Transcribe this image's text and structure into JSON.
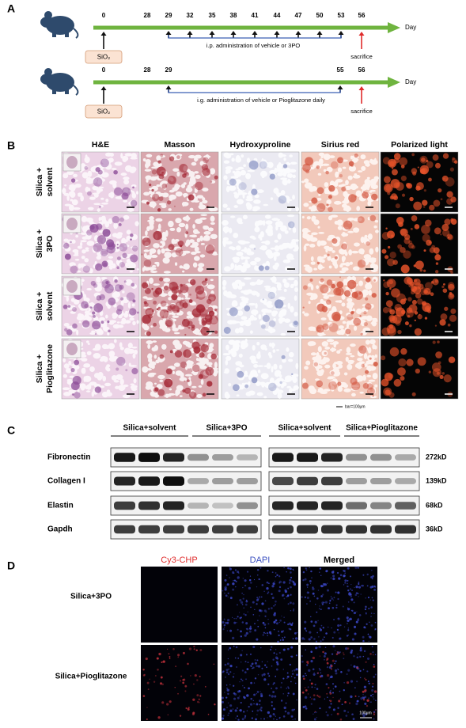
{
  "panel_a": {
    "label": "A",
    "timelines": [
      {
        "days": [
          0,
          28,
          29,
          32,
          35,
          38,
          41,
          44,
          47,
          50,
          53,
          56
        ],
        "unit": "Day",
        "treatment": "i.p. administration of vehicle or 3PO",
        "agent": "SiO₂",
        "endpoint": "sacrifice"
      },
      {
        "days": [
          0,
          28,
          29,
          55,
          56
        ],
        "unit": "Day",
        "treatment": "i.g. administration of vehicle or Pioglitazone daily",
        "agent": "SiO₂",
        "endpoint": "sacrifice"
      }
    ]
  },
  "panel_b": {
    "label": "B",
    "columns": [
      "H&E",
      "Masson",
      "Hydroxyproline",
      "Sirius red",
      "Polarized light"
    ],
    "rows": [
      [
        "Silica +",
        "solvent"
      ],
      [
        "Silica +",
        "3PO"
      ],
      [
        "Silica +",
        "solvent"
      ],
      [
        "Silica +",
        "Pioglitazone"
      ]
    ],
    "scale_bar": "bar=100μm"
  },
  "panel_c": {
    "label": "C",
    "groups": [
      "Silica+solvent",
      "Silica+3PO",
      "Silica+solvent",
      "Silica+Pioglitazone"
    ],
    "proteins": [
      {
        "name": "Fibronectin",
        "size": "272kD"
      },
      {
        "name": "Collagen I",
        "size": "139kD"
      },
      {
        "name": "Elastin",
        "size": "68kD"
      },
      {
        "name": "Gapdh",
        "size": "36kD"
      }
    ]
  },
  "panel_d": {
    "label": "D",
    "channels": [
      "Cy3-CHP",
      "DAPI",
      "Merged"
    ],
    "rows": [
      "Silica+3PO",
      "Silica+Pioglitazone"
    ],
    "scale_bar": "100μm"
  }
}
